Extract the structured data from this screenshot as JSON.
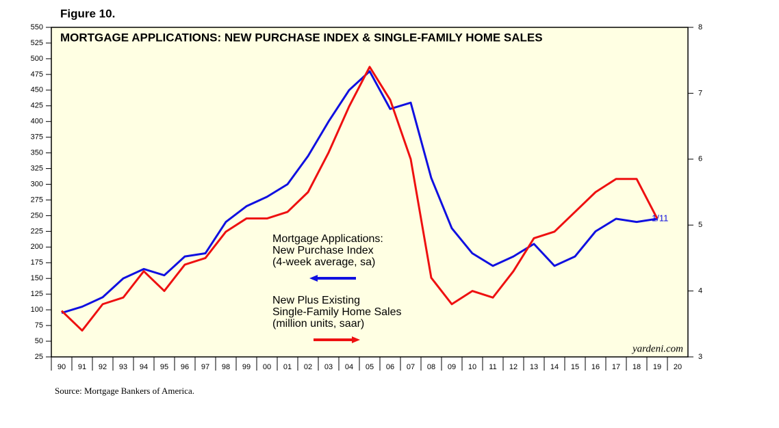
{
  "chart_data": {
    "type": "line",
    "figure_label": "Figure 10.",
    "title": "MORTGAGE APPLICATIONS: NEW PURCHASE INDEX & SINGLE-FAMILY HOME SALES",
    "categories": [
      "90",
      "91",
      "92",
      "93",
      "94",
      "95",
      "96",
      "97",
      "98",
      "99",
      "00",
      "01",
      "02",
      "03",
      "04",
      "05",
      "06",
      "07",
      "08",
      "09",
      "10",
      "11",
      "12",
      "13",
      "14",
      "15",
      "16",
      "17",
      "18",
      "19",
      "20"
    ],
    "series": [
      {
        "name": "Mortgage Applications:\nNew Purchase Index\n(4-week average, sa)",
        "color": "#1010e0",
        "axis": "y",
        "values": [
          95,
          105,
          120,
          150,
          165,
          155,
          185,
          190,
          240,
          265,
          280,
          300,
          345,
          400,
          450,
          480,
          420,
          430,
          310,
          230,
          190,
          170,
          185,
          205,
          170,
          185,
          225,
          245,
          240,
          245,
          null
        ]
      },
      {
        "name": "New Plus Existing\nSingle-Family Home Sales\n(million units, saar)",
        "color": "#ee1010",
        "axis": "y2",
        "values": [
          3.7,
          3.4,
          3.8,
          3.9,
          4.3,
          4.0,
          4.4,
          4.5,
          4.9,
          5.1,
          5.1,
          5.2,
          5.5,
          6.1,
          6.8,
          7.4,
          6.9,
          6.0,
          4.2,
          3.8,
          4.0,
          3.9,
          4.3,
          4.8,
          4.9,
          5.2,
          5.5,
          5.7,
          5.7,
          5.1,
          null
        ]
      }
    ],
    "ylim": [
      25,
      550
    ],
    "yticks": [
      25,
      50,
      75,
      100,
      125,
      150,
      175,
      200,
      225,
      250,
      275,
      300,
      325,
      350,
      375,
      400,
      425,
      450,
      475,
      500,
      525,
      550
    ],
    "y2lim": [
      3,
      8
    ],
    "y2ticks": [
      3,
      4,
      5,
      6,
      7,
      8
    ],
    "annotations": [
      "1/11",
      "yardeni.com"
    ],
    "source": "Source: Mortgage Bankers of America."
  }
}
